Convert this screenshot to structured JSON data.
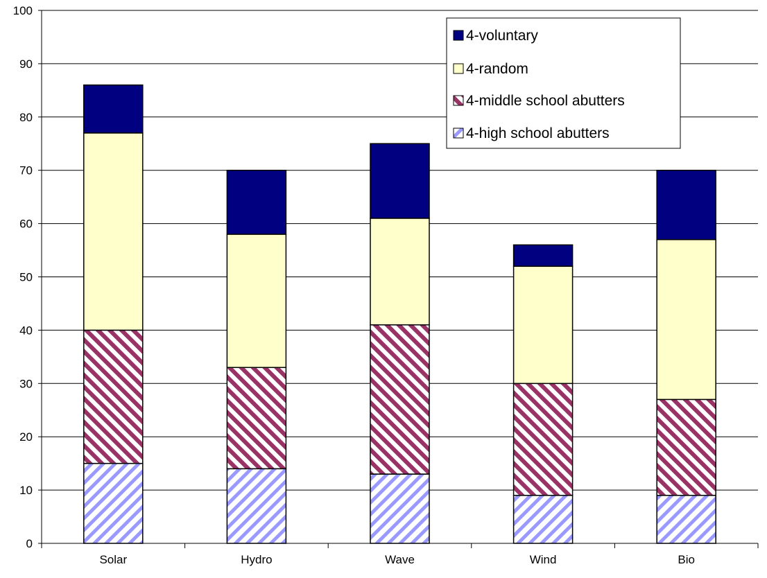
{
  "chart_data": {
    "type": "bar",
    "stacked": true,
    "title": "",
    "xlabel": "",
    "ylabel": "",
    "ylim": [
      0,
      100
    ],
    "yticks": [
      "0",
      "10",
      "20",
      "30",
      "40",
      "50",
      "60",
      "70",
      "80",
      "90",
      "100"
    ],
    "grid": true,
    "legend_position": "top-right",
    "categories": [
      "Solar",
      "Hydro",
      "Wave",
      "Wind",
      "Bio"
    ],
    "series": [
      {
        "name": "4-high school abutters",
        "values": [
          15,
          14,
          13,
          9,
          9
        ],
        "color": "#9999ff",
        "pattern": "diagonal-stripes"
      },
      {
        "name": "4-middle school abutters",
        "values": [
          25,
          19,
          28,
          21,
          18
        ],
        "color": "#993366",
        "pattern": "diagonal-stripes"
      },
      {
        "name": "4-random",
        "values": [
          37,
          25,
          20,
          22,
          30
        ],
        "color": "#ffffcc",
        "pattern": "solid"
      },
      {
        "name": "4-voluntary",
        "values": [
          9,
          12,
          14,
          4,
          13
        ],
        "color": "#000080",
        "pattern": "solid"
      }
    ]
  }
}
